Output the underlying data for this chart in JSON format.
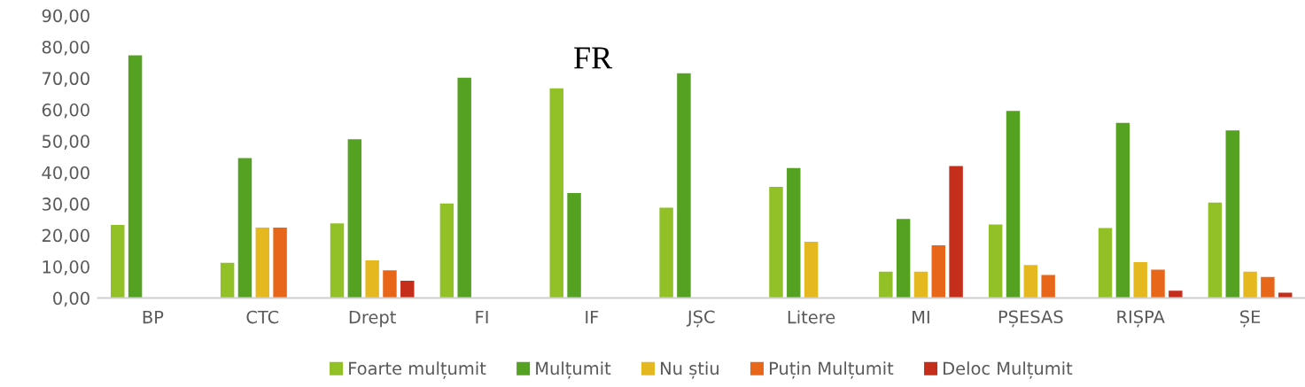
{
  "chart_data": {
    "type": "bar",
    "categories": [
      "BP",
      "CTC",
      "Drept",
      "FI",
      "IF",
      "JȘC",
      "Litere",
      "MI",
      "PȘESAS",
      "RIȘPA",
      "ȘE"
    ],
    "series": [
      {
        "name": "Foarte mulțumit",
        "color": "#92c027",
        "values": [
          23.3,
          11.2,
          23.8,
          30.1,
          66.8,
          28.8,
          35.4,
          8.4,
          23.4,
          22.3,
          30.4
        ]
      },
      {
        "name": "Mulțumit",
        "color": "#55a122",
        "values": [
          77.3,
          44.6,
          50.6,
          70.2,
          33.4,
          71.6,
          41.4,
          25.2,
          59.6,
          55.8,
          53.4
        ]
      },
      {
        "name": "Nu știu",
        "color": "#e6b820",
        "values": [
          null,
          22.4,
          12.0,
          null,
          null,
          null,
          17.9,
          8.4,
          10.5,
          11.4,
          8.4
        ]
      },
      {
        "name": "Puțin Mulțumit",
        "color": "#e8661a",
        "values": [
          null,
          22.4,
          8.8,
          null,
          null,
          null,
          null,
          16.8,
          7.3,
          9.0,
          6.7
        ]
      },
      {
        "name": "Deloc Mulțumit",
        "color": "#c42e1b",
        "values": [
          null,
          null,
          5.5,
          null,
          null,
          null,
          null,
          42.0,
          null,
          2.3,
          1.7
        ]
      }
    ],
    "ylim": [
      0,
      90
    ],
    "yticks": [
      {
        "value": 0,
        "label": "0,00"
      },
      {
        "value": 10,
        "label": "10,00"
      },
      {
        "value": 20,
        "label": "20,00"
      },
      {
        "value": 30,
        "label": "30,00"
      },
      {
        "value": 40,
        "label": "40,00"
      },
      {
        "value": 50,
        "label": "50,00"
      },
      {
        "value": 60,
        "label": "60,00"
      },
      {
        "value": 70,
        "label": "70,00"
      },
      {
        "value": 80,
        "label": "80,00"
      },
      {
        "value": 90,
        "label": "90,00"
      }
    ],
    "annotations": [
      "FR"
    ],
    "grid": false,
    "legend": "bottom"
  }
}
